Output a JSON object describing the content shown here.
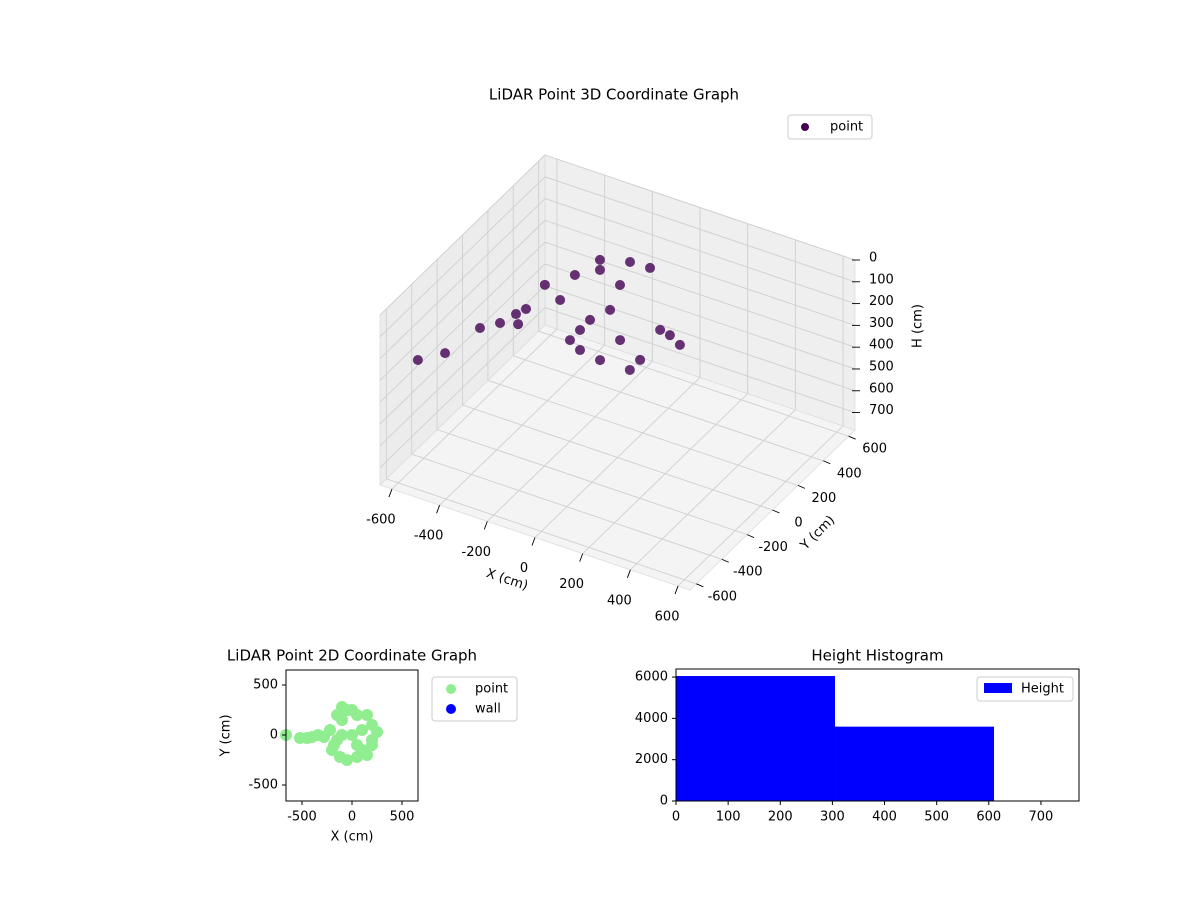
{
  "chart_data": [
    {
      "type": "scatter3d",
      "title": "LiDAR Point 3D Coordinate Graph",
      "x_label": "X (cm)",
      "y_label": "Y (cm)",
      "z_label": "H (cm)",
      "xlim": [
        -650,
        650
      ],
      "ylim": [
        -650,
        650
      ],
      "zlim": [
        780,
        0
      ],
      "xticks": [
        -600,
        -400,
        -200,
        0,
        200,
        400,
        600
      ],
      "yticks": [
        -600,
        -400,
        -200,
        0,
        200,
        400,
        600
      ],
      "zticks": [
        0,
        100,
        200,
        300,
        400,
        500,
        600,
        700
      ],
      "grid": true,
      "legend": "upper right",
      "series": [
        {
          "name": "point",
          "color": "#440154",
          "x": [
            -180,
            -54,
            30,
            -285,
            -411,
            -347,
            -96,
            -180,
            -104,
            64,
            232,
            -20,
            148,
            -104,
            273,
            22,
            -62,
            315,
            -146,
            105,
            -571,
            -457,
            -417,
            -333,
            -266,
            -257,
            -224
          ],
          "y": [
            200,
            200,
            200,
            200,
            200,
            200,
            200,
            200,
            -100,
            -100,
            -100,
            -100,
            -100,
            -100,
            -100,
            -100,
            -100,
            -100,
            -100,
            -100,
            -500,
            -500,
            -300,
            -300,
            -300,
            -300,
            -300
          ],
          "z": [
            99,
            16,
            12,
            161,
            253,
            299,
            137,
            53,
            177,
            161,
            52,
            284,
            221,
            269,
            61,
            38,
            115,
            90,
            239,
            283,
            262,
            188,
            171,
            117,
            51,
            94,
            12
          ]
        }
      ]
    },
    {
      "type": "scatter",
      "title": "LiDAR Point 2D Coordinate Graph",
      "x_label": "X (cm)",
      "y_label": "Y (cm)",
      "xlim": [
        -660,
        660
      ],
      "ylim": [
        -660,
        650
      ],
      "xticks": [
        -500,
        0,
        500
      ],
      "yticks": [
        -500,
        0,
        500
      ],
      "legend": "outside upper right",
      "series": [
        {
          "name": "point",
          "color": "#90ee90",
          "x": [
            -660,
            -520,
            -450,
            -400,
            -340,
            -280,
            -220,
            -200,
            -150,
            -100,
            -50,
            0,
            50,
            150,
            200,
            250,
            200,
            150,
            50,
            -50,
            -120,
            -180,
            -100,
            0,
            100,
            50,
            -100,
            100,
            -150,
            200
          ],
          "y": [
            0,
            -30,
            -30,
            -20,
            0,
            -20,
            50,
            -150,
            200,
            280,
            250,
            250,
            200,
            200,
            100,
            30,
            -100,
            -200,
            -220,
            -250,
            -220,
            -100,
            0,
            0,
            50,
            -100,
            150,
            -150,
            -50,
            -50
          ]
        },
        {
          "name": "wall",
          "color": "#0000ff",
          "x": [],
          "y": []
        }
      ]
    },
    {
      "type": "histogram",
      "title": "Height Histogram",
      "xlim": [
        0,
        773
      ],
      "ylim": [
        0,
        6390
      ],
      "xticks": [
        0,
        100,
        200,
        300,
        400,
        500,
        600,
        700
      ],
      "yticks": [
        0,
        2000,
        4000,
        6000
      ],
      "bins": [
        0,
        305,
        610
      ],
      "legend": "upper right",
      "series": [
        {
          "name": "Height",
          "color": "#0000ff",
          "values": [
            6050,
            3600
          ]
        }
      ]
    }
  ]
}
